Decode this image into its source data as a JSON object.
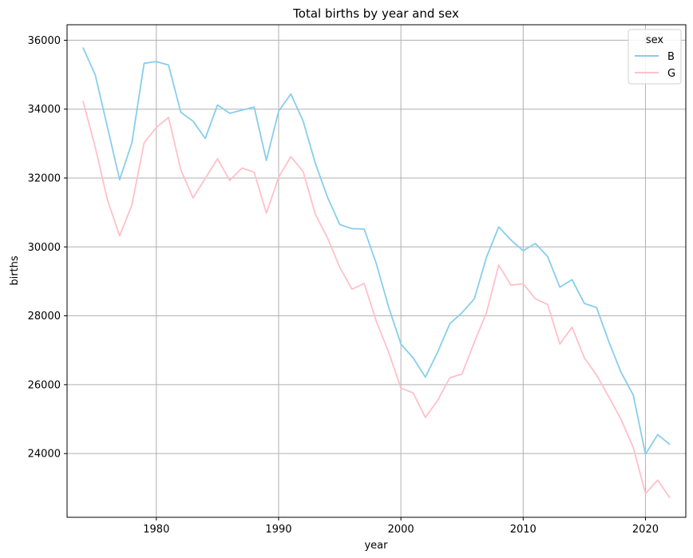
{
  "chart_data": {
    "type": "line",
    "title": "Total births by year and sex",
    "xlabel": "year",
    "ylabel": "births",
    "xlim": [
      1972.7,
      2023.3
    ],
    "ylim": [
      22150,
      36450
    ],
    "xticks": [
      1980,
      1990,
      2000,
      2010,
      2020
    ],
    "yticks": [
      24000,
      26000,
      28000,
      30000,
      32000,
      34000,
      36000
    ],
    "grid": true,
    "legend": {
      "title": "sex",
      "placement": "top-right"
    },
    "x": [
      1974,
      1975,
      1976,
      1977,
      1978,
      1979,
      1980,
      1981,
      1982,
      1983,
      1984,
      1985,
      1986,
      1987,
      1988,
      1989,
      1990,
      1991,
      1992,
      1993,
      1994,
      1995,
      1996,
      1997,
      1998,
      1999,
      2000,
      2001,
      2002,
      2003,
      2004,
      2005,
      2006,
      2007,
      2008,
      2009,
      2010,
      2011,
      2012,
      2013,
      2014,
      2015,
      2016,
      2017,
      2018,
      2019,
      2020,
      2021,
      2022
    ],
    "series": [
      {
        "name": "B",
        "color": "#87ceeb",
        "values": [
          35790,
          35000,
          33480,
          31950,
          33020,
          35330,
          35380,
          35280,
          33910,
          33650,
          33150,
          34120,
          33880,
          33970,
          34060,
          32510,
          33940,
          34440,
          33660,
          32430,
          31440,
          30650,
          30530,
          30520,
          29500,
          28250,
          27180,
          26780,
          26220,
          26940,
          27770,
          28090,
          28490,
          29700,
          30580,
          30200,
          29890,
          30100,
          29720,
          28830,
          29050,
          28360,
          28240,
          27250,
          26360,
          25700,
          23980,
          24550,
          24260
        ]
      },
      {
        "name": "G",
        "color": "#ffc0cb",
        "values": [
          34240,
          32900,
          31370,
          30320,
          31220,
          33020,
          33470,
          33760,
          32240,
          31420,
          31990,
          32560,
          31930,
          32290,
          32170,
          30980,
          32020,
          32620,
          32190,
          30950,
          30260,
          29410,
          28770,
          28940,
          27830,
          26940,
          25900,
          25760,
          25050,
          25540,
          26200,
          26310,
          27230,
          28090,
          29470,
          28890,
          28930,
          28490,
          28330,
          27180,
          27670,
          26780,
          26280,
          25650,
          24990,
          24180,
          22840,
          23230,
          22710
        ]
      }
    ]
  }
}
